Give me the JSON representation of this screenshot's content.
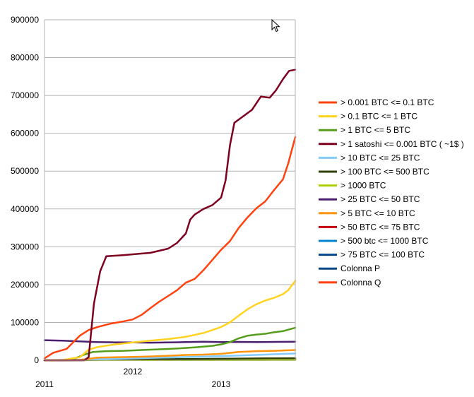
{
  "chart_data": {
    "type": "line",
    "title": "",
    "xlabel": "",
    "ylabel": "",
    "ylim": [
      0,
      900000
    ],
    "y_ticks": [
      "0",
      "100000",
      "200000",
      "300000",
      "400000",
      "500000",
      "600000",
      "700000",
      "800000",
      "900000"
    ],
    "x_range": [
      2011.0,
      2013.84
    ],
    "x_ticks": [
      {
        "value": 2011.0,
        "label": "2011"
      },
      {
        "value": 2012.0,
        "label": "2012"
      },
      {
        "value": 2013.0,
        "label": "2013"
      }
    ],
    "grid": "horizontal",
    "legend_position": "right",
    "series": [
      {
        "name": "> 0.001 BTC <= 0.1 BTC",
        "color": "#ff420e",
        "x": [
          2011.0,
          2011.1,
          2011.25,
          2011.4,
          2011.5,
          2011.6,
          2011.75,
          2011.9,
          2012.0,
          2012.1,
          2012.2,
          2012.3,
          2012.4,
          2012.5,
          2012.6,
          2012.7,
          2012.8,
          2012.9,
          2013.0,
          2013.1,
          2013.2,
          2013.3,
          2013.4,
          2013.5,
          2013.6,
          2013.7,
          2013.76,
          2013.84
        ],
        "values": [
          5000,
          20000,
          30000,
          65000,
          80000,
          88000,
          97000,
          103000,
          108000,
          120000,
          138000,
          155000,
          170000,
          185000,
          205000,
          215000,
          238000,
          265000,
          292000,
          315000,
          350000,
          378000,
          402000,
          420000,
          450000,
          478000,
          520000,
          590000
        ]
      },
      {
        "name": "> 0.1 BTC <= 1 BTC",
        "color": "#ffd320",
        "x": [
          2011.0,
          2011.2,
          2011.4,
          2011.5,
          2011.6,
          2011.8,
          2012.0,
          2012.2,
          2012.4,
          2012.6,
          2012.8,
          2012.9,
          2013.0,
          2013.1,
          2013.2,
          2013.3,
          2013.4,
          2013.5,
          2013.6,
          2013.7,
          2013.76,
          2013.84
        ],
        "values": [
          0,
          500,
          8000,
          28000,
          35000,
          42000,
          47000,
          52000,
          56000,
          62000,
          72000,
          80000,
          88000,
          100000,
          118000,
          135000,
          148000,
          158000,
          165000,
          175000,
          185000,
          210000
        ]
      },
      {
        "name": "> 1 BTC <= 5 BTC",
        "color": "#579d1c",
        "x": [
          2011.0,
          2011.3,
          2011.45,
          2011.55,
          2011.7,
          2011.9,
          2012.1,
          2012.3,
          2012.5,
          2012.7,
          2012.9,
          2013.0,
          2013.1,
          2013.2,
          2013.3,
          2013.4,
          2013.5,
          2013.6,
          2013.7,
          2013.84
        ],
        "values": [
          0,
          500,
          15000,
          22000,
          24000,
          25000,
          27000,
          29000,
          31000,
          34000,
          38000,
          42000,
          48000,
          58000,
          65000,
          68000,
          70000,
          74000,
          77000,
          86000
        ]
      },
      {
        "name": "> 1 satoshi <= 0.001 BTC ( ~1$ )",
        "color": "#7e0021",
        "x": [
          2011.0,
          2011.3,
          2011.45,
          2011.5,
          2011.56,
          2011.63,
          2011.7,
          2011.9,
          2012.0,
          2012.2,
          2012.4,
          2012.5,
          2012.6,
          2012.65,
          2012.7,
          2012.8,
          2012.9,
          2013.0,
          2013.05,
          2013.1,
          2013.15,
          2013.25,
          2013.35,
          2013.45,
          2013.55,
          2013.62,
          2013.7,
          2013.77,
          2013.84
        ],
        "values": [
          0,
          0,
          0,
          8000,
          150000,
          235000,
          275000,
          278000,
          280000,
          284000,
          295000,
          310000,
          335000,
          372000,
          385000,
          400000,
          410000,
          430000,
          475000,
          568000,
          628000,
          645000,
          662000,
          697000,
          694000,
          713000,
          743000,
          765000,
          768000
        ]
      },
      {
        "name": "> 10 BTC <= 25 BTC",
        "color": "#83caff",
        "x": [
          2011.0,
          2011.5,
          2012.0,
          2012.5,
          2013.0,
          2013.5,
          2013.84
        ],
        "values": [
          0,
          2000,
          5000,
          8000,
          11000,
          15000,
          18000
        ]
      },
      {
        "name": "> 100 BTC <= 500 BTC",
        "color": "#314004",
        "x": [
          2011.0,
          2011.5,
          2012.0,
          2012.5,
          2013.0,
          2013.5,
          2013.84
        ],
        "values": [
          0,
          1000,
          2000,
          3000,
          4000,
          5000,
          5500
        ]
      },
      {
        "name": "> 1000 BTC",
        "color": "#aecf00",
        "x": [
          2011.0,
          2011.5,
          2012.0,
          2012.5,
          2013.0,
          2013.5,
          2013.84
        ],
        "values": [
          0,
          200,
          300,
          400,
          500,
          600,
          700
        ]
      },
      {
        "name": "> 25 BTC <= 50 BTC",
        "color": "#4b1f6f",
        "x": [
          2011.0,
          2011.2,
          2011.4,
          2011.6,
          2011.8,
          2012.0,
          2012.2,
          2012.4,
          2012.6,
          2012.8,
          2013.0,
          2013.2,
          2013.4,
          2013.6,
          2013.84
        ],
        "values": [
          53000,
          52000,
          50000,
          48000,
          47500,
          47000,
          46500,
          47000,
          48000,
          49000,
          48000,
          48500,
          48000,
          48500,
          49000
        ]
      },
      {
        "name": "> 5 BTC <= 10 BTC",
        "color": "#ff950e",
        "x": [
          2011.0,
          2011.4,
          2011.6,
          2011.8,
          2012.0,
          2012.2,
          2012.4,
          2012.6,
          2012.8,
          2013.0,
          2013.2,
          2013.4,
          2013.6,
          2013.84
        ],
        "values": [
          0,
          1000,
          7000,
          8000,
          9000,
          10000,
          12000,
          14000,
          15000,
          17000,
          22000,
          24000,
          25000,
          27000
        ]
      },
      {
        "name": "> 50 BTC <= 75 BTC",
        "color": "#c5000b",
        "x": [
          2011.0,
          2011.5,
          2012.0,
          2012.5,
          2013.0,
          2013.5,
          2013.84
        ],
        "values": [
          0,
          500,
          1000,
          1500,
          2000,
          2500,
          3000
        ]
      },
      {
        "name": "> 500 btc <= 1000 BTC",
        "color": "#0084d1",
        "x": [
          2011.0,
          2011.5,
          2012.0,
          2012.5,
          2013.0,
          2013.5,
          2013.84
        ],
        "values": [
          0,
          500,
          1500,
          2500,
          3500,
          4500,
          5000
        ]
      },
      {
        "name": "> 75 BTC <= 100 BTC",
        "color": "#004586",
        "x": [
          2011.0,
          2011.5,
          2012.0,
          2012.5,
          2013.0,
          2013.5,
          2013.84
        ],
        "values": [
          0,
          300,
          600,
          900,
          1200,
          1500,
          1800
        ]
      },
      {
        "name": "Colonna P",
        "color": "#004586",
        "x": [
          2011.0,
          2011.5,
          2012.0,
          2012.5,
          2013.0,
          2013.5,
          2013.84
        ],
        "values": [
          0,
          1000,
          2000,
          3000,
          3500,
          4000,
          4500
        ]
      },
      {
        "name": "Colonna Q",
        "color": "#ff420e",
        "x": [
          2011.0,
          2011.5,
          2012.0,
          2012.5,
          2013.0,
          2013.5,
          2013.84
        ],
        "values": [
          0,
          800,
          1500,
          2200,
          3000,
          3800,
          4200
        ]
      }
    ]
  },
  "cursor": {
    "icon": "mouse-pointer-icon"
  }
}
